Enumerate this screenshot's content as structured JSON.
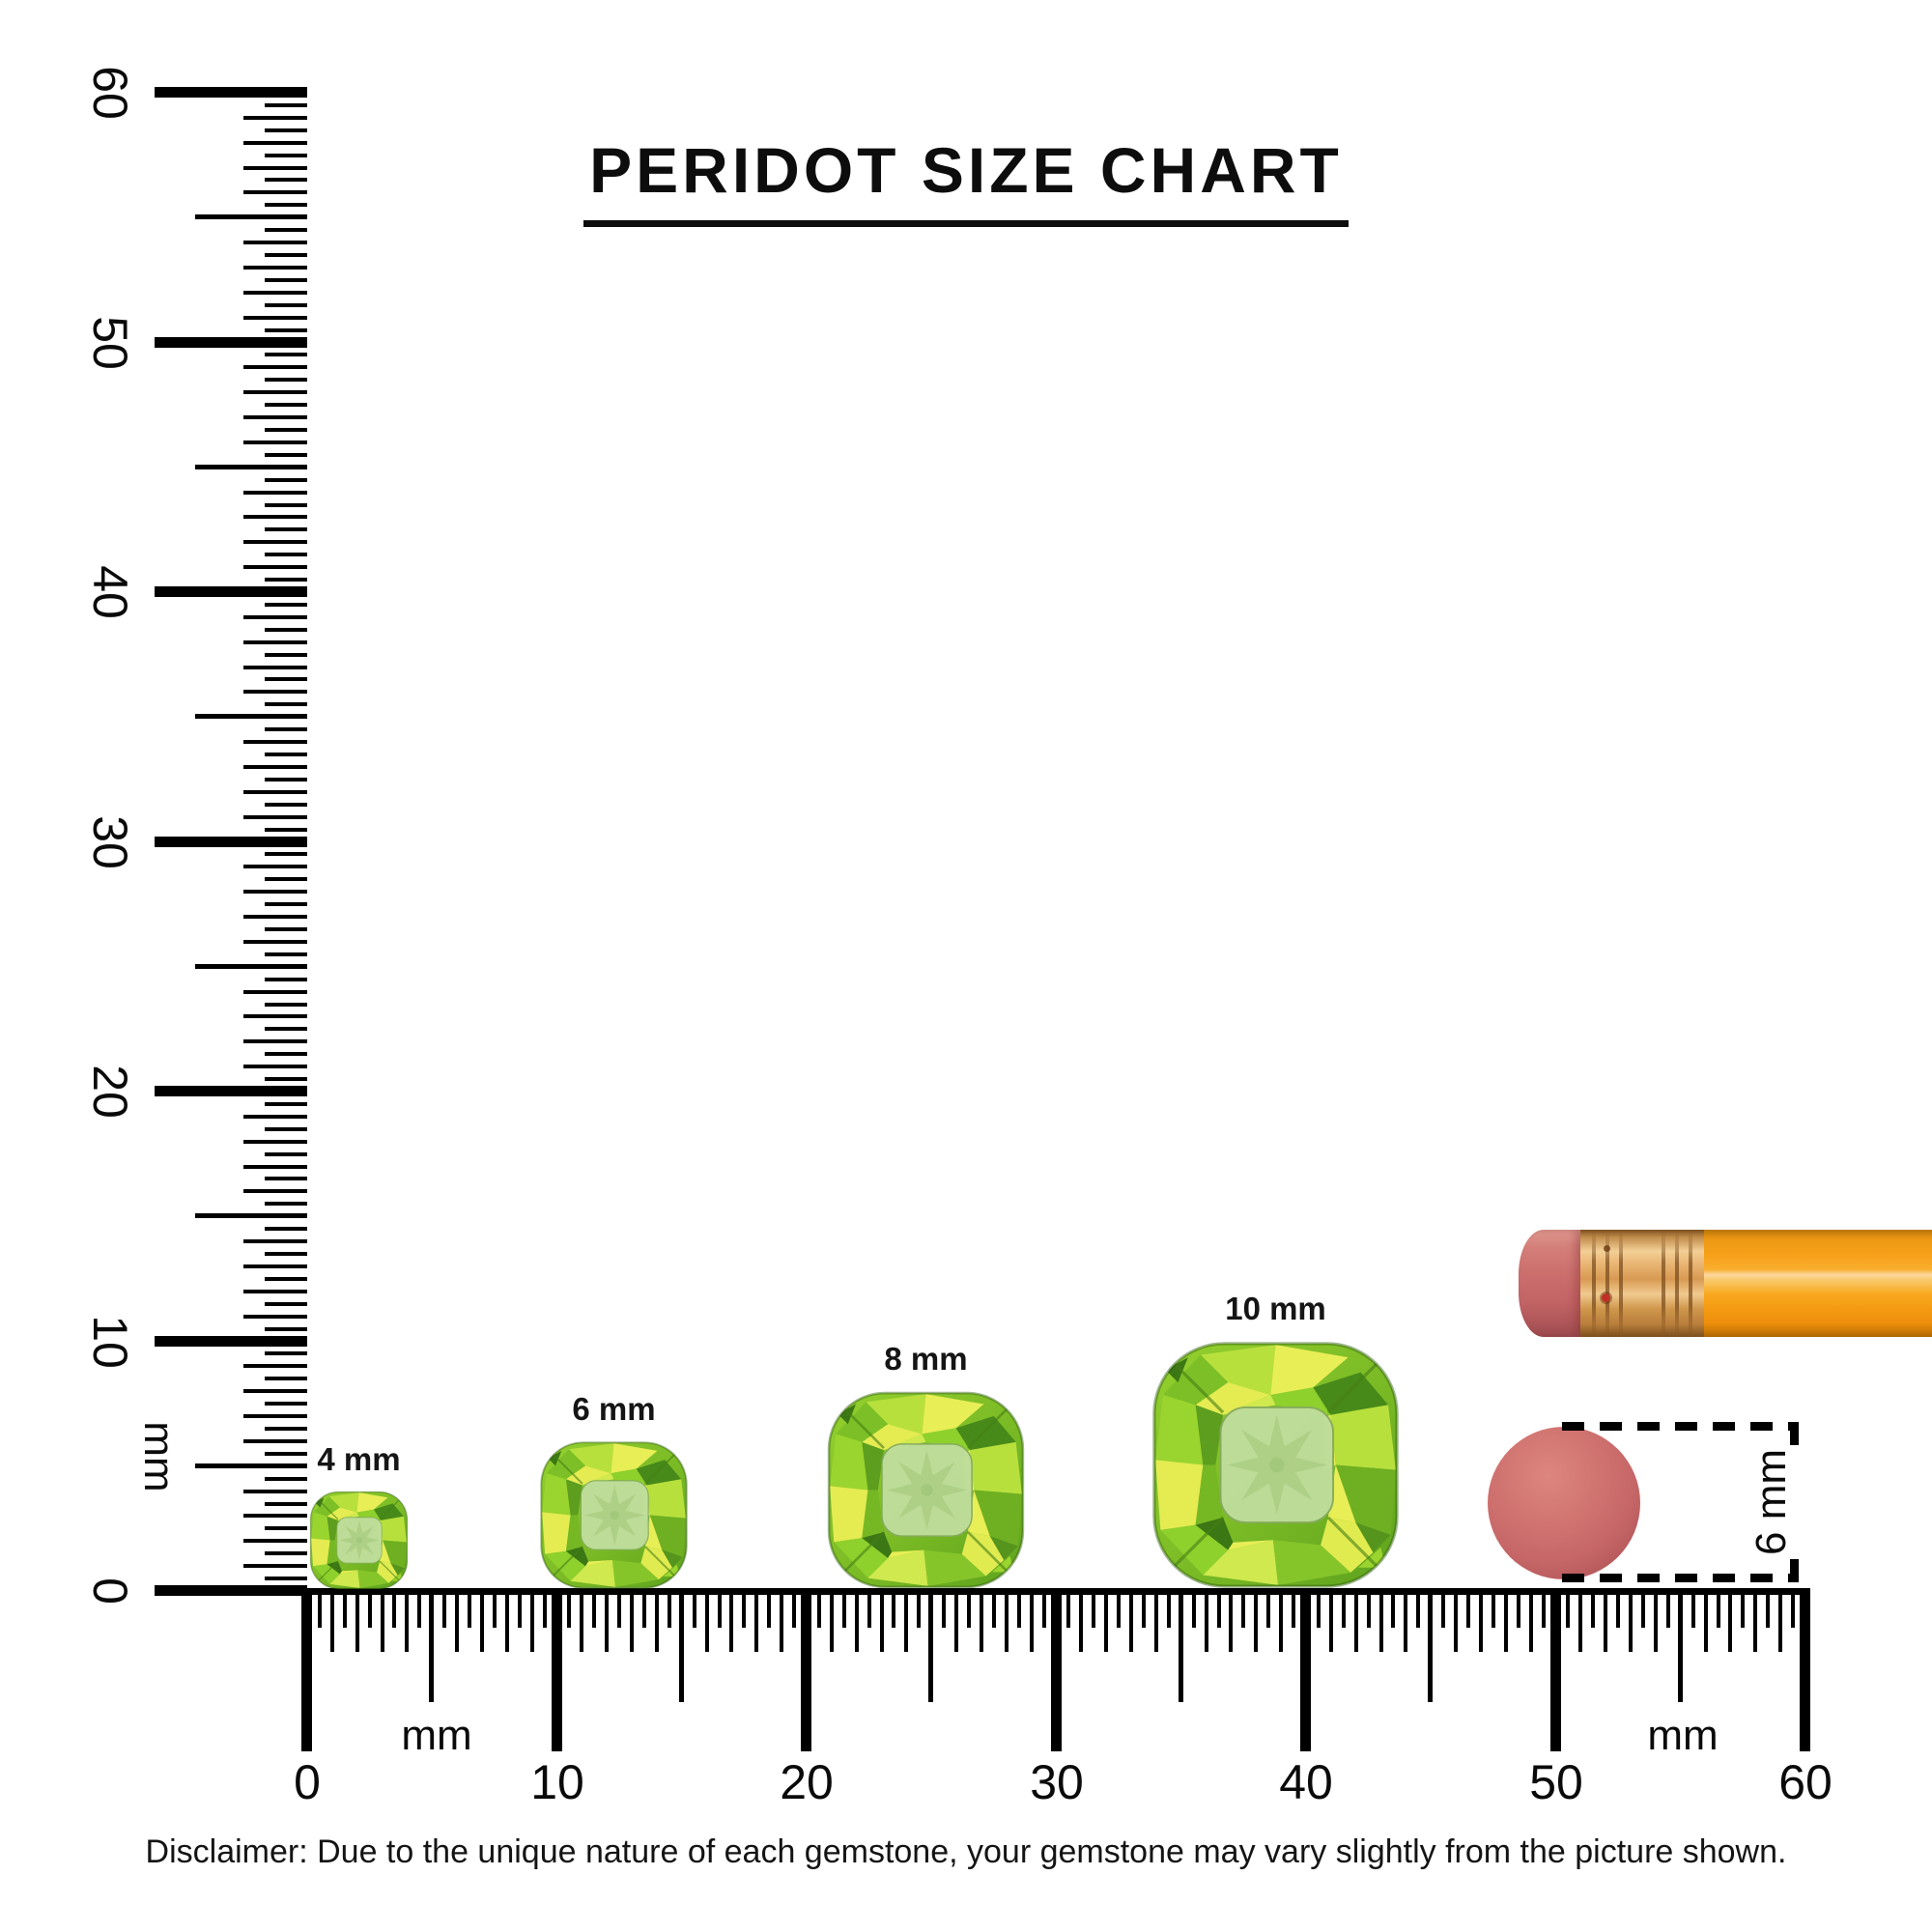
{
  "title": {
    "text": "PERIDOT SIZE CHART"
  },
  "vertical_ruler": {
    "unit_label": "mm",
    "min_mm": 0,
    "max_mm": 60,
    "minor_step_mm": 0.5,
    "labels": [
      "0",
      "10",
      "20",
      "30",
      "40",
      "50",
      "60"
    ]
  },
  "horizontal_ruler": {
    "unit_label_left": "mm",
    "unit_label_right": "mm",
    "min_mm": 0,
    "max_mm": 60,
    "minor_step_mm": 0.5,
    "labels": [
      "0",
      "10",
      "20",
      "30",
      "40",
      "50",
      "60"
    ]
  },
  "gems": [
    {
      "label": "4 mm",
      "mm": 4
    },
    {
      "label": "6 mm",
      "mm": 6
    },
    {
      "label": "8 mm",
      "mm": 8
    },
    {
      "label": "10 mm",
      "mm": 10
    }
  ],
  "eraser_comparison": {
    "dimension_label": "6 mm"
  },
  "disclaimer": {
    "text": "Disclaimer: Due to the unique nature of each gemstone, your gemstone may vary slightly from the picture shown."
  },
  "colors": {
    "ink": "#000000",
    "peridot_bright": "#9bdc23",
    "peridot_yellow": "#e8ee56",
    "peridot_dark": "#3f7622",
    "peridot_table": "#bedd9b",
    "eraser_pink": "#c66667",
    "pencil_orange": "#f7a01a",
    "ferrule_gold": "#e9b573"
  },
  "chart_data": {
    "type": "table",
    "title": "PERIDOT SIZE CHART",
    "categories": [
      "4 mm",
      "6 mm",
      "8 mm",
      "10 mm"
    ],
    "values_mm": [
      4,
      6,
      8,
      10
    ],
    "reference_object": {
      "name": "pencil eraser",
      "diameter_label": "6 mm",
      "diameter_mm": 6
    },
    "ruler_range_mm": [
      0,
      60
    ],
    "ruler_tick_step_mm": 0.5,
    "ruler_label_step_mm": 10
  }
}
